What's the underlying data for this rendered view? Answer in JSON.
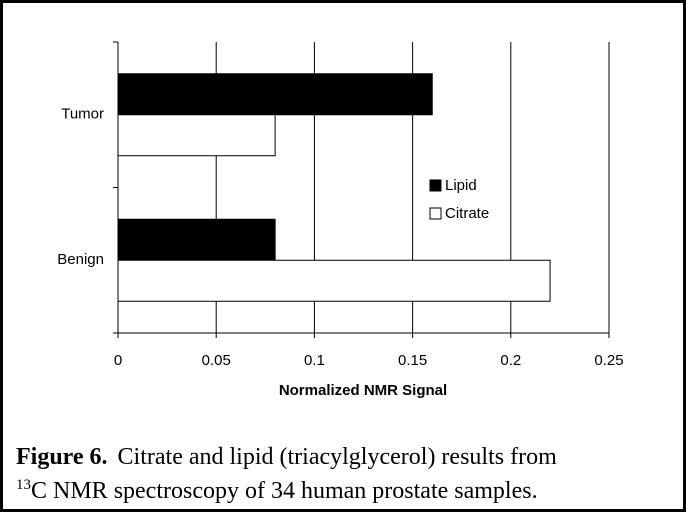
{
  "chart_data": {
    "type": "hbar",
    "x_label": "Normalized NMR Signal",
    "categories": [
      "Tumor",
      "Benign"
    ],
    "series": [
      {
        "name": "Lipid",
        "color": "#000000",
        "values": [
          0.16,
          0.08
        ]
      },
      {
        "name": "Citrate",
        "color": "#ffffff",
        "values": [
          0.08,
          0.22
        ]
      }
    ],
    "xlim": [
      0,
      0.25
    ],
    "xticks": [
      0,
      0.05,
      0.1,
      0.15,
      0.2,
      0.25
    ],
    "grid": true,
    "legend": "right",
    "caption": {
      "label": "Figure 6.",
      "text": "Citrate and lipid (triacylglycerol) results from",
      "isotope": "13",
      "text2": "C NMR spectroscopy of 34 human prostate samples."
    }
  }
}
